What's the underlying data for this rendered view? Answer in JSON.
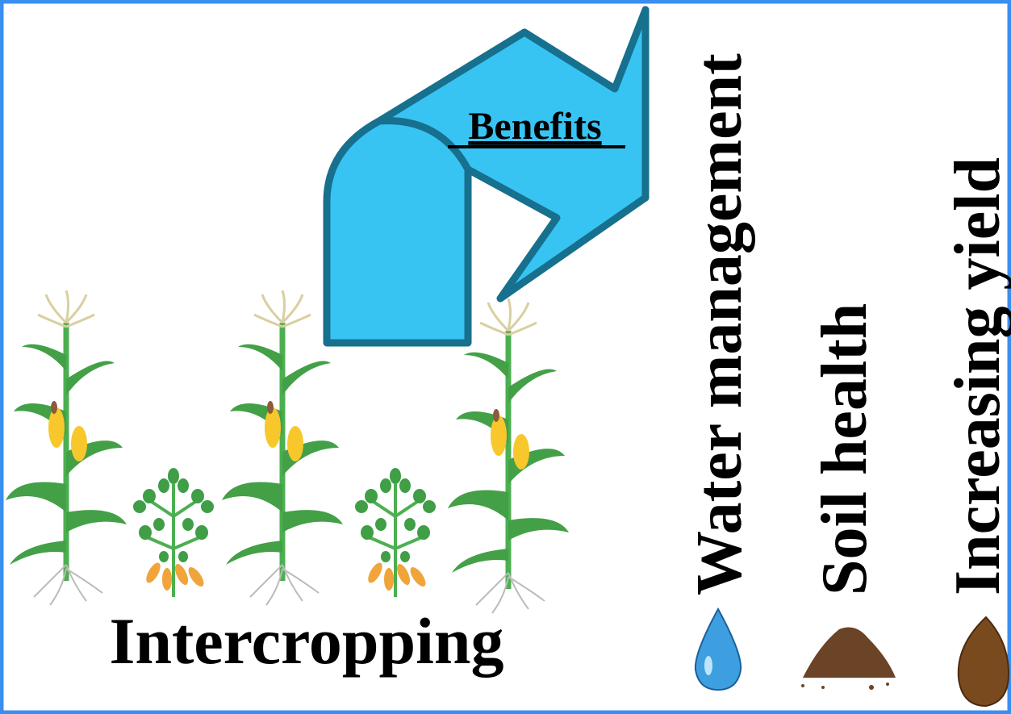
{
  "benefits_arrow": {
    "label": "Benefits"
  },
  "system": {
    "label": "Intercropping"
  },
  "benefits": [
    {
      "label": "Water management"
    },
    {
      "label": "Soil health"
    },
    {
      "label": "Increasing yield"
    }
  ]
}
